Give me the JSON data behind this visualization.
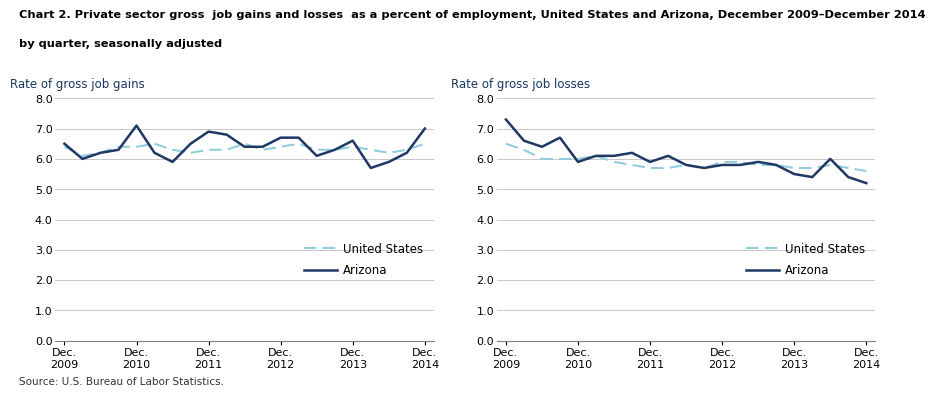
{
  "title_line1": "Chart 2. Private sector gross  job gains and losses  as a percent of employment, United States and Arizona, December 2009–December 2014",
  "title_line2": "by quarter, seasonally adjusted",
  "source": "Source: U.S. Bureau of Labor Statistics.",
  "left_ylabel": "Rate of gross job gains",
  "right_ylabel": "Rate of gross job losses",
  "xtick_labels": [
    "Dec.\n2009",
    "Dec.\n2010",
    "Dec.\n2011",
    "Dec.\n2012",
    "Dec.\n2013",
    "Dec.\n2014"
  ],
  "xtick_positions": [
    0,
    4,
    8,
    12,
    16,
    20
  ],
  "ylim": [
    0.0,
    8.0
  ],
  "yticks": [
    0.0,
    1.0,
    2.0,
    3.0,
    4.0,
    5.0,
    6.0,
    7.0,
    8.0
  ],
  "gains_us": [
    6.4,
    6.1,
    6.2,
    6.4,
    6.4,
    6.5,
    6.3,
    6.2,
    6.3,
    6.3,
    6.5,
    6.3,
    6.4,
    6.5,
    6.3,
    6.3,
    6.4,
    6.3,
    6.2,
    6.3,
    6.5
  ],
  "gains_az": [
    6.5,
    6.0,
    6.2,
    6.3,
    7.1,
    6.2,
    5.9,
    6.5,
    6.9,
    6.8,
    6.4,
    6.4,
    6.7,
    6.7,
    6.1,
    6.3,
    6.6,
    5.7,
    5.9,
    6.2,
    7.0
  ],
  "losses_us": [
    6.5,
    6.3,
    6.0,
    6.0,
    6.0,
    6.1,
    5.9,
    5.8,
    5.7,
    5.7,
    5.8,
    5.7,
    5.9,
    5.9,
    5.8,
    5.8,
    5.7,
    5.7,
    5.8,
    5.7,
    5.6
  ],
  "losses_az": [
    7.3,
    6.6,
    6.4,
    6.7,
    5.9,
    6.1,
    6.1,
    6.2,
    5.9,
    6.1,
    5.8,
    5.7,
    5.8,
    5.8,
    5.9,
    5.8,
    5.5,
    5.4,
    6.0,
    5.4,
    5.2
  ],
  "us_color": "#92CDDC",
  "az_color": "#1F3864",
  "legend_us": "United States",
  "legend_az": "Arizona",
  "title_color": "#000000",
  "label_color": "#17375E",
  "grid_color": "#C8C8C8"
}
